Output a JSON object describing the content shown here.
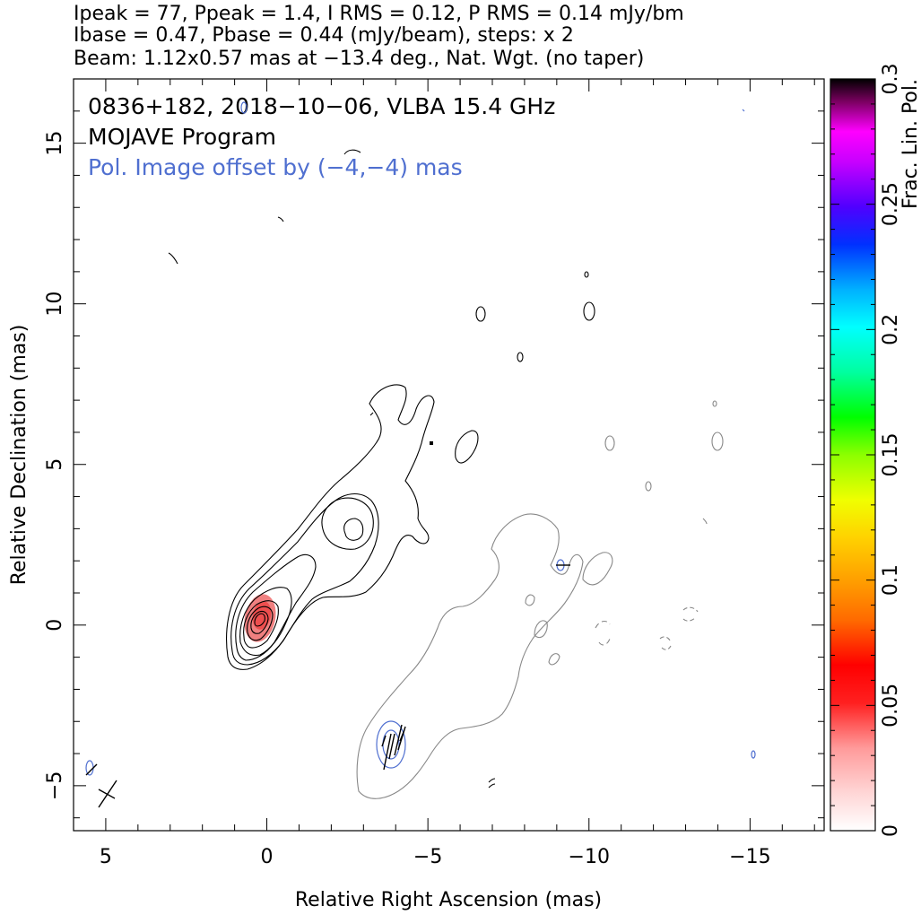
{
  "header": {
    "line1": "Ipeak = 77, Ppeak = 1.4, I RMS = 0.12, P RMS = 0.14 mJy/bm",
    "line2": "Ibase = 0.47, Pbase = 0.44 (mJy/beam), steps: x 2",
    "line3": "Beam: 1.12x0.57 mas at −13.4 deg., Nat. Wgt. (no taper)"
  },
  "overlay": {
    "source": "0836+182, 2018−10−06, VLBA 15.4 GHz",
    "program": "MOJAVE Program",
    "pol_note": "Pol. Image offset by (−4,−4) mas"
  },
  "colors": {
    "total_intensity_contour": "#000000",
    "pol_contour": "#4f6fd0",
    "offset_contour": "#888888",
    "core_fill": "#f08080",
    "pol_text": "#4f6fd0"
  },
  "chart_data": {
    "type": "contour",
    "xlabel": "Relative Right Ascension (mas)",
    "ylabel": "Relative Declination (mas)",
    "xlim": [
      6,
      -17.3
    ],
    "ylim": [
      -6.4,
      17
    ],
    "x_ticks": [
      5,
      0,
      -5,
      -10,
      -15
    ],
    "y_ticks": [
      -5,
      0,
      5,
      10,
      15
    ],
    "x_tick_labels": [
      "5",
      "0",
      "−5",
      "−10",
      "−15"
    ],
    "y_tick_labels": [
      "−5",
      "0",
      "5",
      "10",
      "15"
    ],
    "core": {
      "x": 0.1,
      "y": 0.1
    },
    "jet_blob": {
      "x": -3.0,
      "y": 2.9
    },
    "colorbar": {
      "label": "Frac. Lin. Pol.",
      "min": 0,
      "max": 0.3,
      "ticks": [
        0,
        0.05,
        0.1,
        0.15,
        0.2,
        0.25,
        0.3
      ],
      "tick_labels": [
        "0",
        "0.05",
        "0.1",
        "0.15",
        "0.2",
        "0.25",
        "0.3"
      ]
    }
  }
}
